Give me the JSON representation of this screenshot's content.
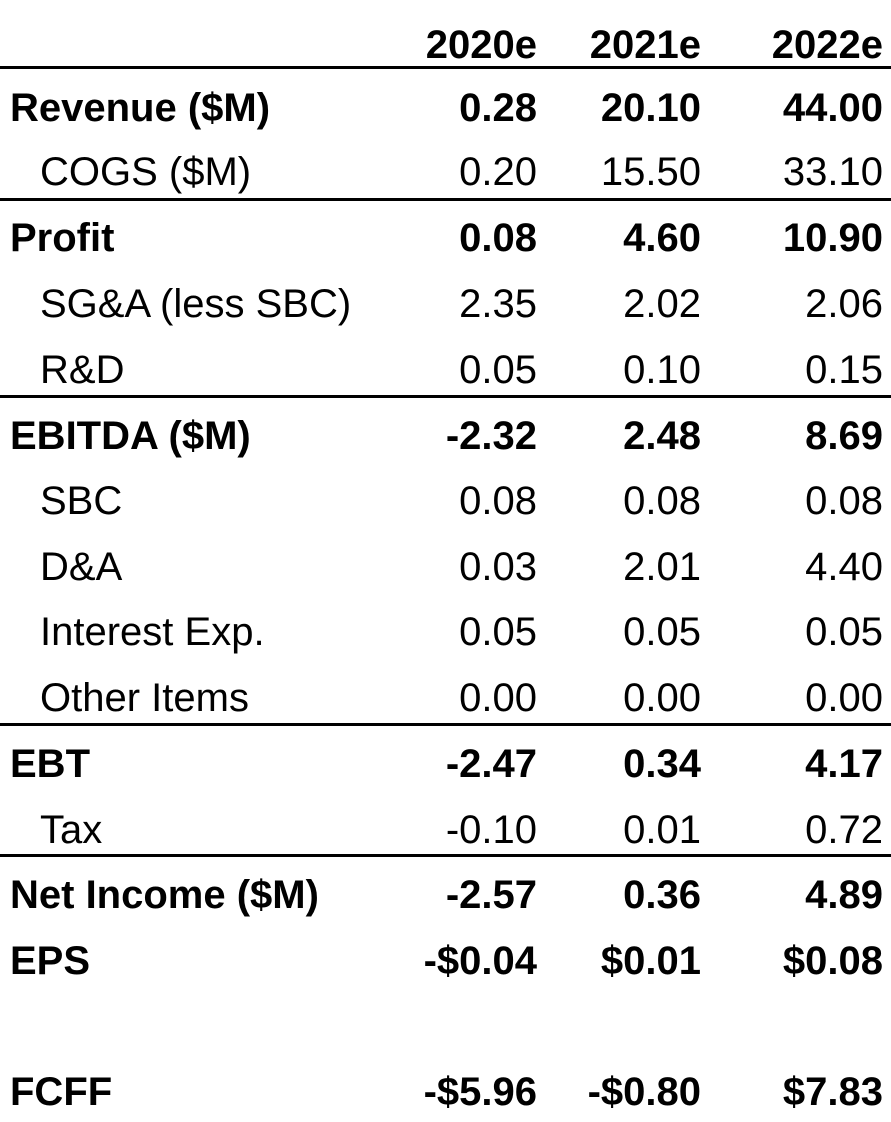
{
  "header": {
    "col1": "2020e",
    "col2": "2021e",
    "col3": "2022e"
  },
  "rows": [
    {
      "label": "Revenue ($M)",
      "v1": "0.28",
      "v2": "20.10",
      "v3": "44.00"
    },
    {
      "label": "COGS ($M)",
      "v1": "0.20",
      "v2": "15.50",
      "v3": "33.10"
    },
    {
      "label": "Profit",
      "v1": "0.08",
      "v2": "4.60",
      "v3": "10.90"
    },
    {
      "label": "SG&A (less SBC)",
      "v1": "2.35",
      "v2": "2.02",
      "v3": "2.06"
    },
    {
      "label": "R&D",
      "v1": "0.05",
      "v2": "0.10",
      "v3": "0.15"
    },
    {
      "label": "EBITDA ($M)",
      "v1": "-2.32",
      "v2": "2.48",
      "v3": "8.69"
    },
    {
      "label": "SBC",
      "v1": "0.08",
      "v2": "0.08",
      "v3": "0.08"
    },
    {
      "label": "D&A",
      "v1": "0.03",
      "v2": "2.01",
      "v3": "4.40"
    },
    {
      "label": "Interest Exp.",
      "v1": "0.05",
      "v2": "0.05",
      "v3": "0.05"
    },
    {
      "label": "Other Items",
      "v1": "0.00",
      "v2": "0.00",
      "v3": "0.00"
    },
    {
      "label": "EBT",
      "v1": "-2.47",
      "v2": "0.34",
      "v3": "4.17"
    },
    {
      "label": "Tax",
      "v1": "-0.10",
      "v2": "0.01",
      "v3": "0.72"
    },
    {
      "label": "Net Income ($M)",
      "v1": "-2.57",
      "v2": "0.36",
      "v3": "4.89"
    },
    {
      "label": "EPS",
      "v1": "-$0.04",
      "v2": "$0.01",
      "v3": "$0.08"
    },
    {
      "label": "FCFF",
      "v1": "-$5.96",
      "v2": "-$0.80",
      "v3": "$7.83"
    }
  ]
}
